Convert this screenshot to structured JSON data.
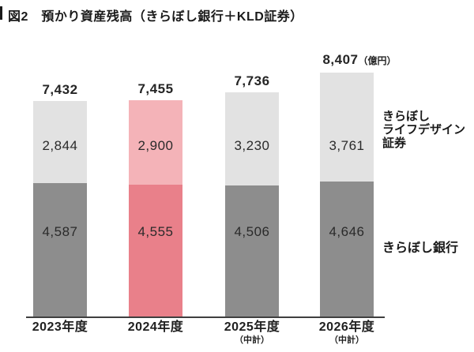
{
  "title": "図2　預かり資産残高（きらぼし銀行＋KLD証券）",
  "legend": {
    "securities": [
      "きらぼし",
      "ライフデザイン",
      "証券"
    ],
    "bank": "きらぼし銀行"
  },
  "chart_data": {
    "type": "bar",
    "stacked": true,
    "title": "預かり資産残高（きらぼし銀行＋KLD証券）",
    "unit": "（億円）",
    "categories": [
      "2023年度",
      "2024年度",
      "2025年度",
      "2026年度"
    ],
    "category_notes": [
      "",
      "",
      "（中計）",
      "（中計）"
    ],
    "series": [
      {
        "name": "きらぼし銀行",
        "values": [
          4587,
          4555,
          4506,
          4646
        ]
      },
      {
        "name": "きらぼしライフデザイン証券",
        "values": [
          2844,
          2900,
          3230,
          3761
        ]
      }
    ],
    "totals": [
      7432,
      7455,
      7736,
      8407
    ],
    "totals_display": [
      "7,432",
      "7,455",
      "7,736",
      "8,407"
    ],
    "bank_display": [
      "4,587",
      "4,555",
      "4,506",
      "4,646"
    ],
    "securities_display": [
      "2,844",
      "2,900",
      "3,230",
      "3,761"
    ],
    "highlight_index": 1,
    "legend_position": "right",
    "grid": false,
    "colors": {
      "bank": "#8d8d8d",
      "securities": "#e2e2e2",
      "bank_highlight": "#e9808a",
      "securities_highlight": "#f4b3b8",
      "axis": "#3f3f3f",
      "text": "#252525"
    }
  }
}
